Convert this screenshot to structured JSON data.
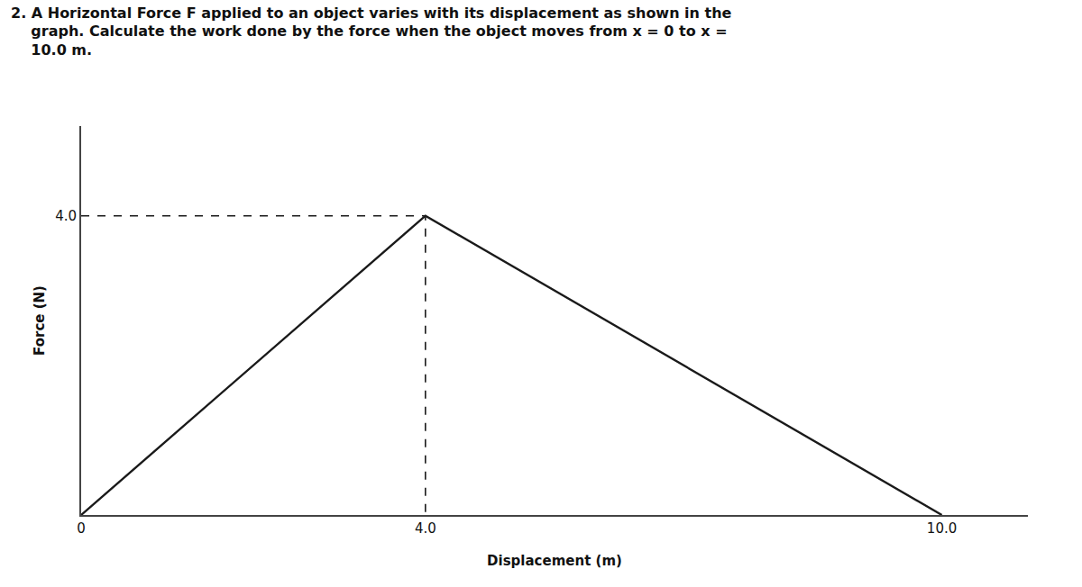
{
  "chart_data": {
    "type": "line",
    "title": [
      "2. A Horizontal Force F applied to an object varies with its displacement as shown in the",
      "    graph. Calculate the work done by the force when the object moves from x = 0 to x =",
      "    10.0 m."
    ],
    "xlabel": "Displacement (m)",
    "ylabel": "Force (N)",
    "series": [
      {
        "x": [
          0,
          4.0,
          10.0
        ],
        "values": [
          0,
          4.0,
          0
        ],
        "color": "#1a1a1a",
        "line_style": "solid"
      },
      {
        "x": [
          0,
          4.0,
          4.0
        ],
        "values": [
          4.0,
          4.0,
          0
        ],
        "color": "#1a1a1a",
        "line_style": "dashed"
      }
    ],
    "xlim": [
      0,
      11.0
    ],
    "ylim": [
      0,
      5.2
    ],
    "xticks": [
      0,
      {
        "value": 4.0,
        "label": "4.0"
      },
      {
        "value": 10.0,
        "label": "10.0"
      }
    ],
    "yticks": [
      {
        "value": 4.0,
        "label": "4.0"
      }
    ],
    "grid": false
  }
}
